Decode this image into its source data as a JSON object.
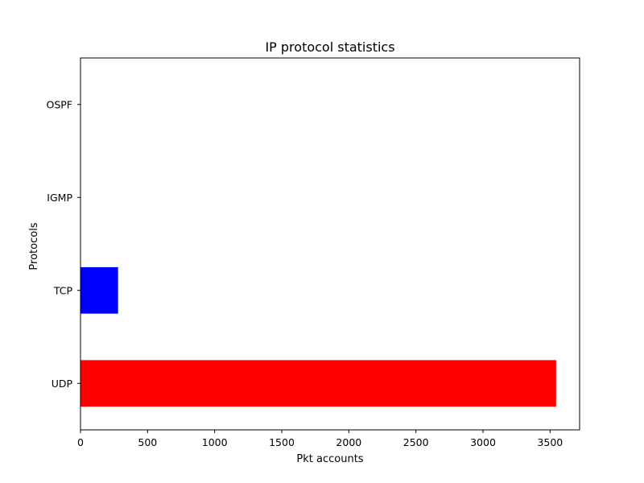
{
  "chart_data": {
    "type": "bar",
    "orientation": "horizontal",
    "title": "IP protocol statistics",
    "xlabel": "Pkt accounts",
    "ylabel": "Protocols",
    "categories": [
      "UDP",
      "TCP",
      "IGMP",
      "OSPF"
    ],
    "values": [
      3545,
      280,
      0,
      0
    ],
    "colors": [
      "#ff0000",
      "#0000ff",
      "#00bf00",
      "#bf00bf"
    ],
    "xlim": [
      0,
      3720
    ],
    "xticks": [
      0,
      500,
      1000,
      1500,
      2000,
      2500,
      3000,
      3500
    ],
    "grid": false,
    "legend": "none"
  }
}
